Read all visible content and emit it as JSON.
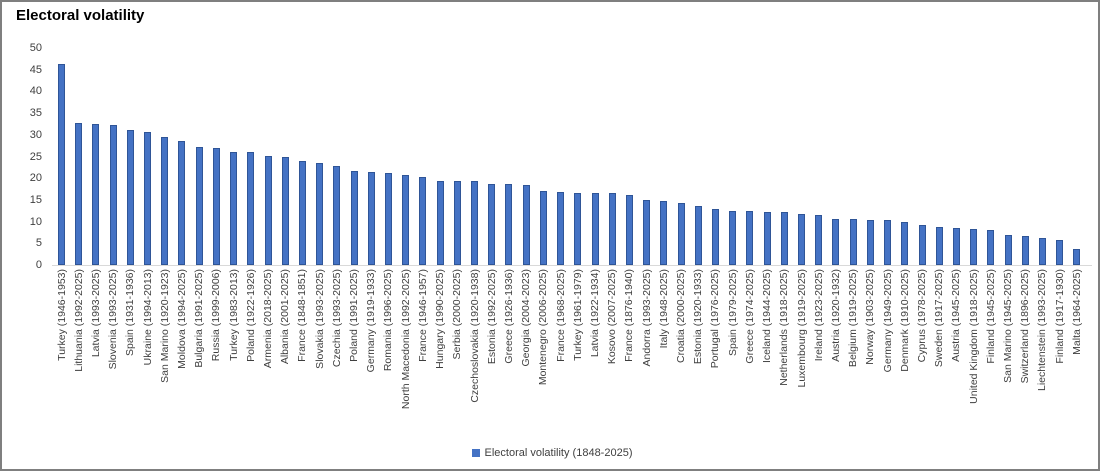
{
  "title": "Electoral volatility",
  "colors": {
    "bar_fill": "#4472C4",
    "bar_border": "#2F5597",
    "axis_line": "#D9D9D9",
    "label_text": "#3F3F3F",
    "title_text": "#000000",
    "frame_border": "#7F7F7F",
    "background": "#FFFFFF"
  },
  "chart_data": {
    "type": "bar",
    "title": "Electoral volatility",
    "xlabel": "",
    "ylabel": "",
    "ylim": [
      0,
      50
    ],
    "yticks": [
      0,
      5,
      10,
      15,
      20,
      25,
      30,
      35,
      40,
      45,
      50
    ],
    "grid": false,
    "legend_entries": [
      "Electoral volatility (1848-2025)"
    ],
    "legend_position": "bottom-center",
    "bar_color": "#4472C4",
    "categories": [
      "Turkey (1946-1953)",
      "Lithuania (1992-2025)",
      "Latvia (1993-2025)",
      "Slovenia (1993-2025)",
      "Spain (1931-1936)",
      "Ukraine (1994-2013)",
      "San Marino (1920-1923)",
      "Moldova (1994-2025)",
      "Bulgaria (1991-2025)",
      "Russia (1999-2006)",
      "Turkey (1983-2013)",
      "Poland (1922-1926)",
      "Armenia (2018-2025)",
      "Albania (2001-2025)",
      "France (1848-1851)",
      "Slovakia (1993-2025)",
      "Czechia (1993-2025)",
      "Poland (1991-2025)",
      "Germany (1919-1933)",
      "Romania (1996-2025)",
      "North Macedonia (1992-2025)",
      "France (1946-1957)",
      "Hungary (1990-2025)",
      "Serbia (2000-2025)",
      "Czechoslovakia (1920-1938)",
      "Estonia (1992-2025)",
      "Greece (1926-1936)",
      "Georgia (2004-2023)",
      "Montenegro (2006-2025)",
      "France (1968-2025)",
      "Turkey (1961-1979)",
      "Latvia (1922-1934)",
      "Kosovo (2007-2025)",
      "France (1876-1940)",
      "Andorra (1993-2025)",
      "Italy (1948-2025)",
      "Croatia (2000-2025)",
      "Estonia (1920-1933)",
      "Portugal (1976-2025)",
      "Spain (1979-2025)",
      "Greece (1974-2025)",
      "Iceland (1944-2025)",
      "Netherlands (1918-2025)",
      "Luxembourg (1919-2025)",
      "Ireland (1923-2025)",
      "Austria (1920-1932)",
      "Belgium (1919-2025)",
      "Norway (1903-2025)",
      "Germany (1949-2025)",
      "Denmark (1910-2025)",
      "Cyprus (1978-2025)",
      "Sweden (1917-2025)",
      "Austria (1945-2025)",
      "United Kingdom (1918-2025)",
      "Finland (1945-2025)",
      "San Marino (1945-2025)",
      "Switzerland (1896-2025)",
      "Liechtenstein (1993-2025)",
      "Finland (1917-1930)",
      "Malta (1964-2025)"
    ],
    "values": [
      46.2,
      32.8,
      32.6,
      32.2,
      31.2,
      30.7,
      29.4,
      28.6,
      27.2,
      26.9,
      26.1,
      26.0,
      25.1,
      24.8,
      24.0,
      23.4,
      22.8,
      21.6,
      21.5,
      21.2,
      20.8,
      20.3,
      19.4,
      19.4,
      19.3,
      18.7,
      18.7,
      18.5,
      17.1,
      16.8,
      16.7,
      16.6,
      16.5,
      16.1,
      15.0,
      14.7,
      14.2,
      13.7,
      13.0,
      12.5,
      12.4,
      12.3,
      12.1,
      11.7,
      11.5,
      10.7,
      10.6,
      10.4,
      10.3,
      10.0,
      9.2,
      8.8,
      8.5,
      8.2,
      8.0,
      6.9,
      6.7,
      6.2,
      5.7,
      3.6
    ]
  }
}
